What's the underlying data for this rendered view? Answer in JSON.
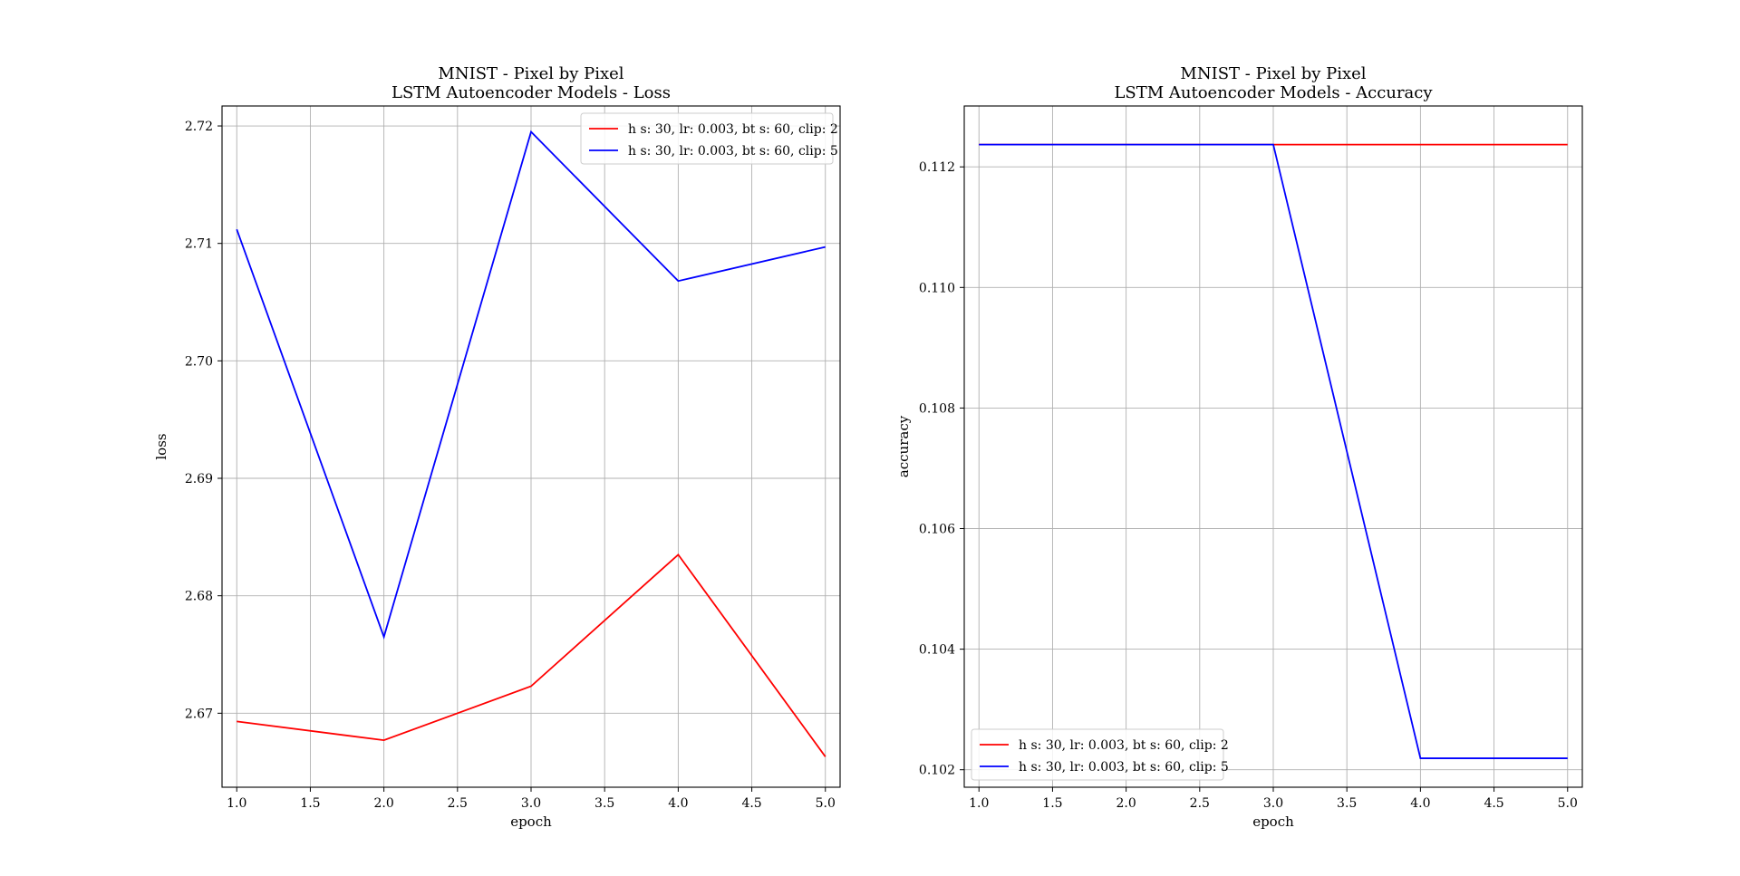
{
  "chart_data": [
    {
      "type": "line",
      "title_line1": "MNIST - Pixel by Pixel",
      "title_line2": "LSTM Autoencoder Models - Loss",
      "xlabel": "epoch",
      "ylabel": "loss",
      "xlim": [
        0.9,
        5.1
      ],
      "ylim": [
        2.6637,
        2.7217
      ],
      "xticks": [
        1.0,
        1.5,
        2.0,
        2.5,
        3.0,
        3.5,
        4.0,
        4.5,
        5.0
      ],
      "xtick_labels": [
        "1.0",
        "1.5",
        "2.0",
        "2.5",
        "3.0",
        "3.5",
        "4.0",
        "4.5",
        "5.0"
      ],
      "yticks": [
        2.67,
        2.68,
        2.69,
        2.7,
        2.71,
        2.72
      ],
      "ytick_labels": [
        "2.67",
        "2.68",
        "2.69",
        "2.70",
        "2.71",
        "2.72"
      ],
      "grid": true,
      "legend_position": "upper right",
      "x": [
        1.0,
        2.0,
        3.0,
        4.0,
        5.0
      ],
      "series": [
        {
          "name": "h s: 30, lr: 0.003, bt s: 60, clip: 2",
          "color": "#ff0000",
          "values": [
            2.6693,
            2.6677,
            2.6723,
            2.6835,
            2.6663
          ]
        },
        {
          "name": "h s: 30, lr: 0.003, bt s: 60, clip: 5",
          "color": "#0000ff",
          "values": [
            2.7112,
            2.6765,
            2.7195,
            2.7068,
            2.7097
          ]
        }
      ]
    },
    {
      "type": "line",
      "title_line1": "MNIST - Pixel by Pixel",
      "title_line2": "LSTM Autoencoder Models - Accuracy",
      "xlabel": "epoch",
      "ylabel": "accuracy",
      "xlim": [
        0.9,
        5.1
      ],
      "ylim": [
        0.10171,
        0.11301
      ],
      "xticks": [
        1.0,
        1.5,
        2.0,
        2.5,
        3.0,
        3.5,
        4.0,
        4.5,
        5.0
      ],
      "xtick_labels": [
        "1.0",
        "1.5",
        "2.0",
        "2.5",
        "3.0",
        "3.5",
        "4.0",
        "4.5",
        "5.0"
      ],
      "yticks": [
        0.102,
        0.104,
        0.106,
        0.108,
        0.11,
        0.112
      ],
      "ytick_labels": [
        "0.102",
        "0.104",
        "0.106",
        "0.108",
        "0.110",
        "0.112"
      ],
      "grid": true,
      "legend_position": "lower left",
      "x": [
        1.0,
        2.0,
        3.0,
        4.0,
        5.0
      ],
      "series": [
        {
          "name": "h s: 30, lr: 0.003, bt s: 60, clip: 2",
          "color": "#ff0000",
          "values": [
            0.11237,
            0.11237,
            0.11237,
            0.11237,
            0.11237
          ]
        },
        {
          "name": "h s: 30, lr: 0.003, bt s: 60, clip: 5",
          "color": "#0000ff",
          "values": [
            0.11237,
            0.11237,
            0.11237,
            0.10219,
            0.10219
          ]
        }
      ]
    }
  ]
}
